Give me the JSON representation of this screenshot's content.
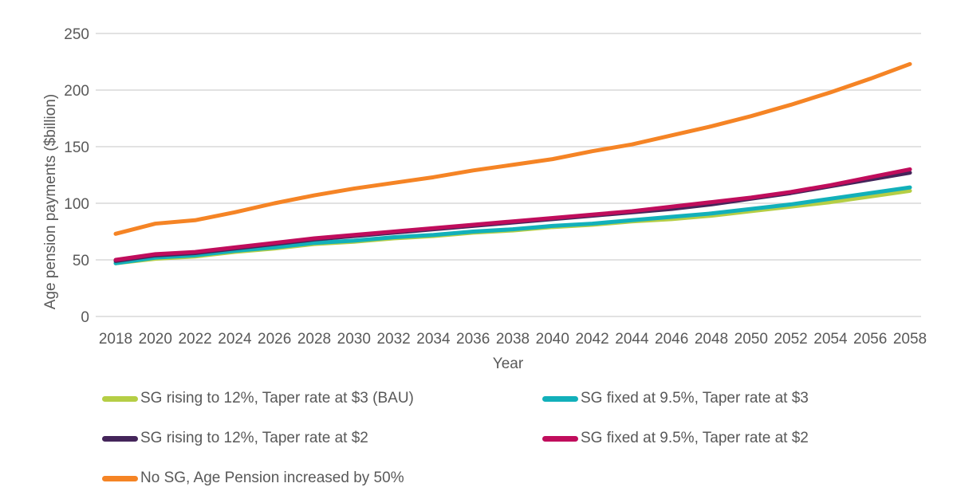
{
  "chart_data": {
    "type": "line",
    "title": "",
    "xlabel": "Year",
    "ylabel": "Age pension payments ($billion)",
    "x": [
      "2018",
      "2020",
      "2022",
      "2024",
      "2026",
      "2028",
      "2030",
      "2032",
      "2034",
      "2036",
      "2038",
      "2040",
      "2042",
      "2044",
      "2046",
      "2048",
      "2050",
      "2052",
      "2054",
      "2056",
      "2058"
    ],
    "y_ticks": [
      0,
      50,
      100,
      150,
      200,
      250
    ],
    "ylim": [
      0,
      250
    ],
    "grid": true,
    "legend_position": "bottom",
    "colors": {
      "text": "#595959",
      "grid": "#d9d9d9",
      "background": "#ffffff"
    },
    "series": [
      {
        "name": "SG rising to 12%, Taper rate at $3 (BAU)",
        "color": "#b5ce45",
        "values": [
          47,
          51,
          53,
          57,
          60,
          64,
          66,
          69,
          71,
          74,
          76,
          79,
          81,
          84,
          86,
          89,
          93,
          97,
          101,
          106,
          111
        ]
      },
      {
        "name": "SG fixed at 9.5%, Taper rate at $3",
        "color": "#12b0ba",
        "values": [
          47,
          52,
          54,
          58,
          61,
          65,
          67,
          70,
          72,
          75,
          77,
          80,
          82,
          85,
          88,
          91,
          95,
          99,
          104,
          109,
          114
        ]
      },
      {
        "name": "SG rising to 12%, Taper rate at $2",
        "color": "#44255a",
        "values": [
          49,
          54,
          56,
          60,
          64,
          68,
          71,
          74,
          77,
          80,
          83,
          86,
          89,
          92,
          95,
          99,
          104,
          109,
          115,
          121,
          127
        ]
      },
      {
        "name": "SG fixed at 9.5%, Taper rate at $2",
        "color": "#c00d5c",
        "values": [
          50,
          55,
          57,
          61,
          65,
          69,
          72,
          75,
          78,
          81,
          84,
          87,
          90,
          93,
          97,
          101,
          105,
          110,
          116,
          123,
          130
        ]
      },
      {
        "name": "No SG, Age Pension increased by 50%",
        "color": "#f58425",
        "values": [
          73,
          82,
          85,
          92,
          100,
          107,
          113,
          118,
          123,
          129,
          134,
          139,
          146,
          152,
          160,
          168,
          177,
          187,
          198,
          210,
          223
        ]
      }
    ]
  }
}
